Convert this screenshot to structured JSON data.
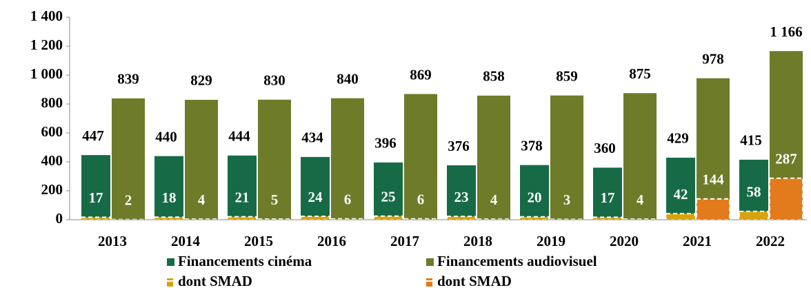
{
  "chart_data": {
    "type": "bar",
    "categories": [
      "2013",
      "2014",
      "2015",
      "2016",
      "2017",
      "2018",
      "2019",
      "2020",
      "2021",
      "2022"
    ],
    "series": [
      {
        "name": "Financements cinéma",
        "color": "#166b46",
        "values": [
          447,
          440,
          444,
          434,
          396,
          376,
          378,
          360,
          429,
          415
        ]
      },
      {
        "name": "Financements audiovisuel",
        "color": "#6e7b29",
        "values": [
          839,
          829,
          830,
          840,
          869,
          858,
          859,
          875,
          978,
          1166
        ],
        "value_labels": [
          "839",
          "829",
          "830",
          "840",
          "869",
          "858",
          "859",
          "875",
          "978",
          "1 166"
        ]
      },
      {
        "name": "dont SMAD",
        "color": "#d9a30f",
        "values": [
          17,
          18,
          21,
          24,
          25,
          23,
          20,
          17,
          42,
          58
        ]
      },
      {
        "name": "dont SMAD",
        "color": "#e37a1b",
        "values": [
          2,
          4,
          5,
          6,
          6,
          4,
          3,
          4,
          144,
          287
        ]
      }
    ],
    "ylim": [
      0,
      1400
    ],
    "yticks": [
      0,
      200,
      400,
      600,
      800,
      {
        "value": 1000,
        "label": "1 000"
      },
      {
        "value": 1200,
        "label": "1 200"
      },
      {
        "value": 1400,
        "label": "1 400"
      }
    ],
    "grid": false
  }
}
